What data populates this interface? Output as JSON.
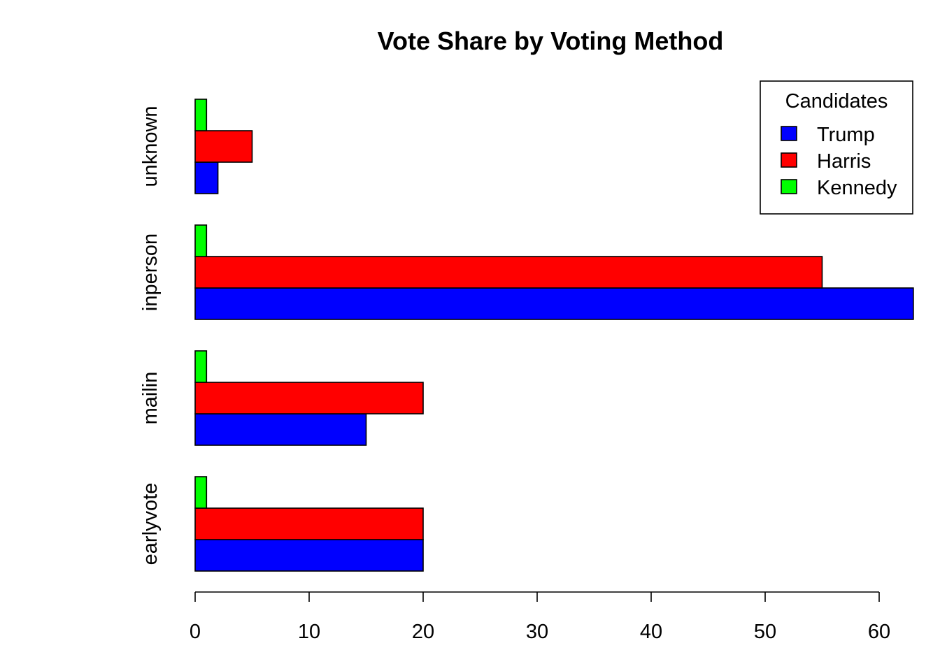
{
  "chart_data": {
    "type": "bar",
    "orientation": "horizontal",
    "title": "Vote Share by Voting Method",
    "xlabel": "",
    "ylabel": "",
    "categories": [
      "earlyvote",
      "mailin",
      "inperson",
      "unknown"
    ],
    "series": [
      {
        "name": "Trump",
        "color": "#0000FF",
        "values": [
          20,
          15,
          63,
          2
        ]
      },
      {
        "name": "Harris",
        "color": "#FF0000",
        "values": [
          20,
          20,
          55,
          5
        ]
      },
      {
        "name": "Kennedy",
        "color": "#00FF00",
        "values": [
          1,
          1,
          1,
          1
        ]
      }
    ],
    "xlim": [
      0,
      63
    ],
    "xticks": [
      0,
      10,
      20,
      30,
      40,
      50,
      60
    ],
    "grid": false,
    "legend": {
      "title": "Candidates",
      "placement": "top-right",
      "entries": [
        "Trump",
        "Harris",
        "Kennedy"
      ]
    }
  }
}
